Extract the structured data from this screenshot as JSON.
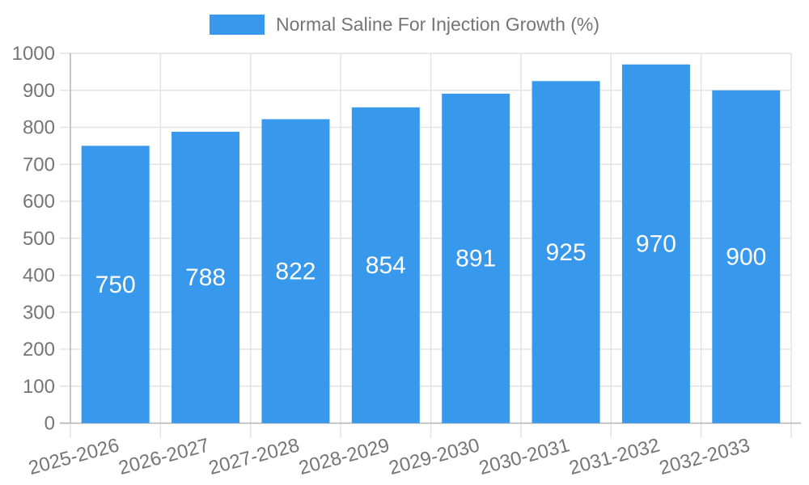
{
  "chart_data": {
    "type": "bar",
    "title": "Normal Saline For Injection Growth (%)",
    "legend": {
      "label": "Normal Saline For Injection Growth (%)",
      "position": "top"
    },
    "categories": [
      "2025-2026",
      "2026-2027",
      "2027-2028",
      "2028-2029",
      "2029-2030",
      "2030-2031",
      "2031-2032",
      "2032-2033"
    ],
    "values": [
      750,
      788,
      822,
      854,
      891,
      925,
      970,
      900
    ],
    "xlabel": "",
    "ylabel": "",
    "ylim": [
      0,
      1000
    ],
    "yticks": [
      0,
      100,
      200,
      300,
      400,
      500,
      600,
      700,
      800,
      900,
      1000
    ],
    "grid": true,
    "x_label_rotation_deg": -15,
    "colors": {
      "bar": "#3899EC",
      "value_label": "#FFFFFF",
      "axis_text": "#757575",
      "grid_line": "#E3E3E3",
      "axis_line": "#B3B3B3",
      "background": "#FFFFFF"
    }
  }
}
